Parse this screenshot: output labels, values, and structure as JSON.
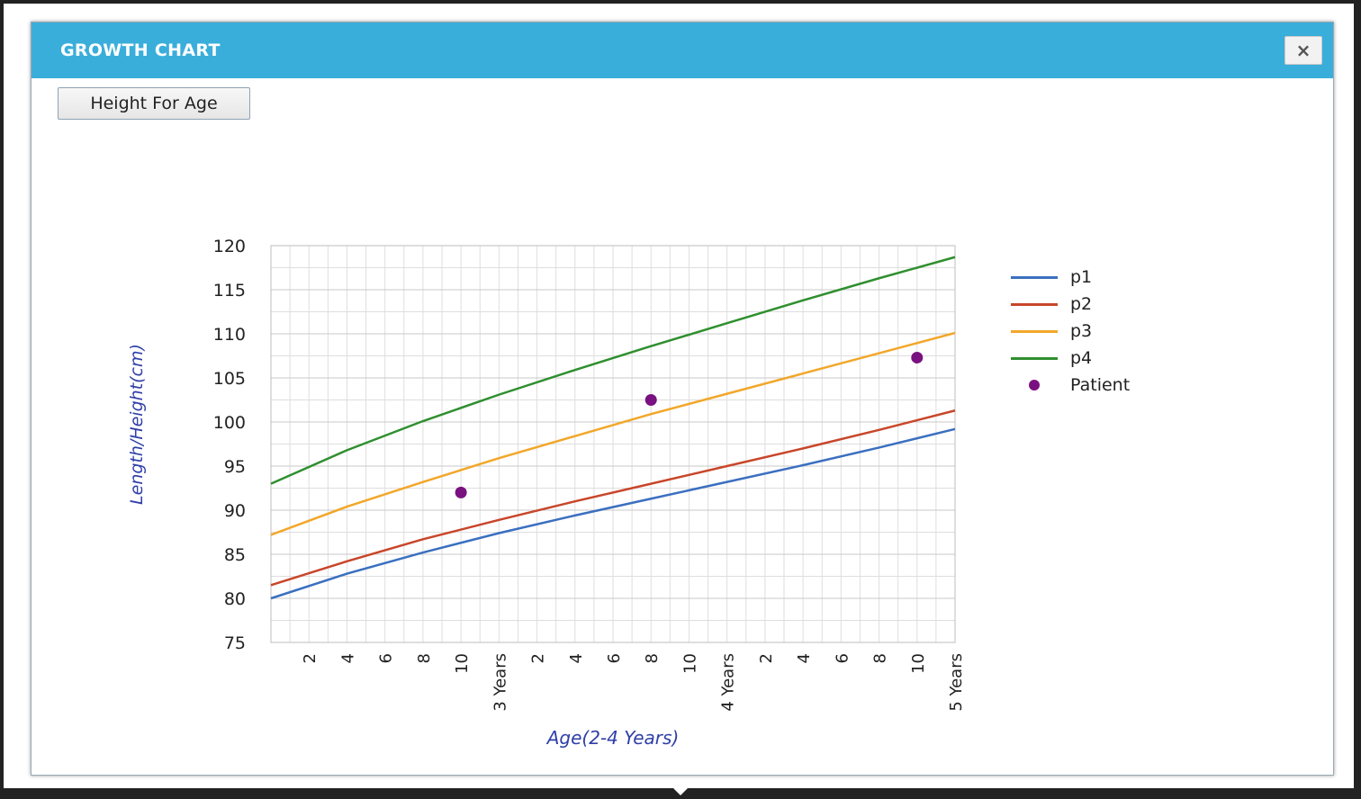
{
  "modal": {
    "title": "GROWTH CHART",
    "close_symbol": "×",
    "close_icon": "close-icon"
  },
  "tabs": [
    {
      "label": "Height For Age"
    }
  ],
  "chart_data": {
    "type": "line",
    "title": "",
    "xlabel": "Age(2-4 Years)",
    "ylabel": "Length/Height(cm)",
    "xlim": [
      24,
      60
    ],
    "ylim": [
      75,
      120
    ],
    "y_ticks": [
      75,
      80,
      85,
      90,
      95,
      100,
      105,
      110,
      115,
      120
    ],
    "x_tick_labels": [
      {
        "x": 26,
        "label": "2"
      },
      {
        "x": 28,
        "label": "4"
      },
      {
        "x": 30,
        "label": "6"
      },
      {
        "x": 32,
        "label": "8"
      },
      {
        "x": 34,
        "label": "10"
      },
      {
        "x": 36,
        "label": "3 Years"
      },
      {
        "x": 38,
        "label": "2"
      },
      {
        "x": 40,
        "label": "4"
      },
      {
        "x": 42,
        "label": "6"
      },
      {
        "x": 44,
        "label": "8"
      },
      {
        "x": 46,
        "label": "10"
      },
      {
        "x": 48,
        "label": "4 Years"
      },
      {
        "x": 50,
        "label": "2"
      },
      {
        "x": 52,
        "label": "4"
      },
      {
        "x": 54,
        "label": "6"
      },
      {
        "x": 56,
        "label": "8"
      },
      {
        "x": 58,
        "label": "10"
      },
      {
        "x": 60,
        "label": "5 Years"
      }
    ],
    "grid": true,
    "legend_position": "right",
    "series": [
      {
        "name": "p1",
        "color": "#3b6fc0",
        "x": [
          24,
          28,
          32,
          36,
          40,
          44,
          48,
          52,
          56,
          60
        ],
        "y": [
          80.0,
          82.8,
          85.2,
          87.4,
          89.4,
          91.3,
          93.2,
          95.1,
          97.1,
          99.2
        ]
      },
      {
        "name": "p2",
        "color": "#c8462a",
        "x": [
          24,
          28,
          32,
          36,
          40,
          44,
          48,
          52,
          56,
          60
        ],
        "y": [
          81.5,
          84.2,
          86.7,
          88.9,
          91.0,
          93.0,
          95.0,
          97.0,
          99.1,
          101.3
        ]
      },
      {
        "name": "p3",
        "color": "#f2a72a",
        "x": [
          24,
          28,
          32,
          36,
          40,
          44,
          48,
          52,
          56,
          60
        ],
        "y": [
          87.2,
          90.4,
          93.2,
          95.9,
          98.4,
          100.9,
          103.2,
          105.5,
          107.8,
          110.1
        ]
      },
      {
        "name": "p4",
        "color": "#2f8f2f",
        "x": [
          24,
          28,
          32,
          36,
          40,
          44,
          48,
          52,
          56,
          60
        ],
        "y": [
          93.0,
          96.8,
          100.1,
          103.1,
          105.9,
          108.6,
          111.2,
          113.8,
          116.3,
          118.7
        ]
      }
    ],
    "points": {
      "name": "Patient",
      "color": "#7a1180",
      "x": [
        34,
        44,
        58
      ],
      "y": [
        92.0,
        102.5,
        107.3
      ]
    }
  }
}
